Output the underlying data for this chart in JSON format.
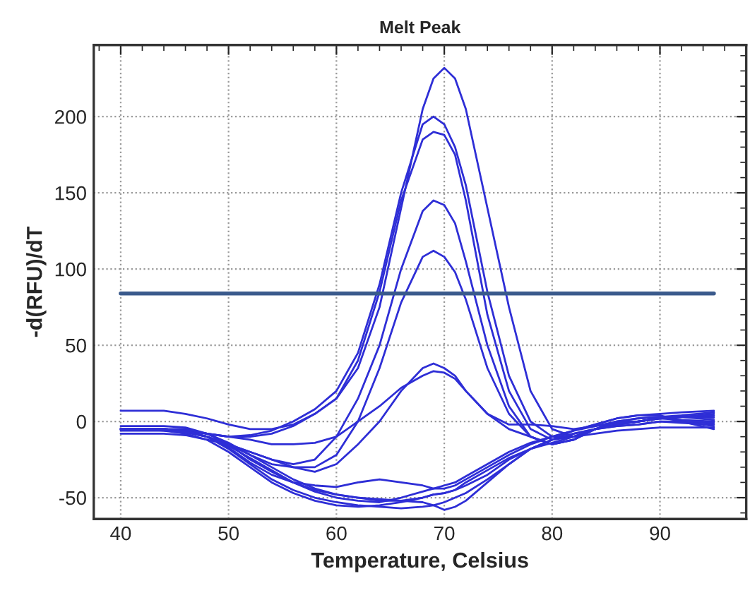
{
  "chart_data": {
    "type": "line",
    "title": "Melt Peak",
    "xlabel": "Temperature, Celsius",
    "ylabel": "-d(RFU)/dT",
    "x": [
      40,
      42,
      44,
      46,
      48,
      50,
      52,
      54,
      56,
      58,
      60,
      62,
      64,
      66,
      68,
      69,
      70,
      71,
      72,
      74,
      76,
      78,
      80,
      82,
      84,
      86,
      88,
      90,
      92,
      95
    ],
    "xlim": [
      37.5,
      98
    ],
    "ylim": [
      -64,
      247
    ],
    "xticks": [
      40,
      50,
      60,
      70,
      80,
      90
    ],
    "yticks": [
      -50,
      0,
      50,
      100,
      150,
      200
    ],
    "grid": true,
    "line_style": "solid",
    "marker": "none",
    "ref_lines": [
      {
        "axis": "y",
        "value": 84,
        "color": "#3a5a8c"
      }
    ],
    "series": [
      {
        "color": "#2e2ed6",
        "values": [
          -5,
          -5,
          -5,
          -6,
          -8,
          -10,
          -10,
          -8,
          -3,
          5,
          15,
          35,
          75,
          140,
          205,
          225,
          232,
          225,
          205,
          140,
          75,
          20,
          -5,
          -10,
          -5,
          0,
          0,
          2,
          3,
          5
        ]
      },
      {
        "color": "#2e2ed6",
        "values": [
          -5,
          -5,
          -5,
          -6,
          -8,
          -10,
          -9,
          -6,
          0,
          8,
          20,
          45,
          90,
          150,
          195,
          200,
          195,
          180,
          155,
          85,
          30,
          0,
          -10,
          -10,
          -5,
          -2,
          0,
          2,
          3,
          3
        ]
      },
      {
        "color": "#2e2ed6",
        "values": [
          7,
          7,
          7,
          5,
          2,
          -2,
          -5,
          -5,
          -2,
          5,
          15,
          40,
          85,
          145,
          185,
          190,
          188,
          175,
          145,
          70,
          20,
          -5,
          -12,
          -10,
          -5,
          0,
          2,
          3,
          4,
          6
        ]
      },
      {
        "color": "#2e2ed6",
        "values": [
          -5,
          -5,
          -5,
          -7,
          -10,
          -15,
          -20,
          -25,
          -28,
          -25,
          -10,
          15,
          50,
          100,
          138,
          145,
          142,
          130,
          105,
          50,
          10,
          -10,
          -15,
          -12,
          -5,
          -2,
          0,
          2,
          3,
          1
        ]
      },
      {
        "color": "#2e2ed6",
        "values": [
          -5,
          -5,
          -5,
          -7,
          -10,
          -15,
          -22,
          -28,
          -30,
          -30,
          -22,
          0,
          35,
          78,
          108,
          112,
          108,
          98,
          80,
          35,
          5,
          -10,
          -15,
          -12,
          -5,
          -2,
          0,
          2,
          3,
          2.5
        ]
      },
      {
        "color": "#2e2ed6",
        "values": [
          -5,
          -5,
          -6,
          -8,
          -12,
          -15,
          -20,
          -25,
          -30,
          -33,
          -28,
          -15,
          0,
          20,
          35,
          38,
          35,
          30,
          20,
          5,
          -5,
          -10,
          -15,
          -12,
          -5,
          -2,
          0,
          2,
          1,
          0
        ]
      },
      {
        "color": "#2e2ed6",
        "values": [
          -5,
          -5,
          -5,
          -6,
          -8,
          -10,
          -12,
          -15,
          -15,
          -14,
          -10,
          0,
          10,
          22,
          30,
          33,
          32,
          28,
          20,
          5,
          -2,
          -2,
          -3,
          -5,
          -3,
          -1,
          0,
          2,
          3,
          4
        ]
      },
      {
        "color": "#2e2ed6",
        "values": [
          -5,
          -5,
          -5,
          -6,
          -10,
          -18,
          -28,
          -38,
          -45,
          -50,
          -53,
          -55,
          -56,
          -57,
          -56,
          -55,
          -53,
          -50,
          -47,
          -38,
          -28,
          -18,
          -12,
          -8,
          -5,
          -3,
          -2,
          0,
          0,
          -1
        ]
      },
      {
        "color": "#2e2ed6",
        "values": [
          -3,
          -3,
          -3,
          -4,
          -8,
          -15,
          -25,
          -33,
          -40,
          -45,
          -48,
          -50,
          -52,
          -52,
          -50,
          -48,
          -47,
          -45,
          -42,
          -35,
          -25,
          -18,
          -12,
          -8,
          -5,
          -3,
          -2,
          0,
          -1,
          -2
        ]
      },
      {
        "color": "#2e2ed6",
        "values": [
          -8,
          -8,
          -8,
          -9,
          -12,
          -20,
          -30,
          -40,
          -47,
          -52,
          -55,
          -56,
          -55,
          -53,
          -50,
          -48,
          -47,
          -45,
          -40,
          -32,
          -24,
          -18,
          -14,
          -10,
          -8,
          -6,
          -5,
          -4,
          -4,
          -4
        ]
      },
      {
        "color": "#2e2ed6",
        "values": [
          -5,
          -5,
          -5,
          -6,
          -10,
          -17,
          -27,
          -35,
          -40,
          -42,
          -43,
          -40,
          -38,
          -40,
          -42,
          -44,
          -44,
          -42,
          -38,
          -30,
          -22,
          -15,
          -10,
          -6,
          -2,
          2,
          4,
          4,
          0,
          -3
        ]
      },
      {
        "color": "#2e2ed6",
        "values": [
          -5,
          -5,
          -5,
          -5,
          -8,
          -14,
          -22,
          -30,
          -38,
          -44,
          -48,
          -50,
          -51,
          -52,
          -53,
          -55,
          -58,
          -56,
          -52,
          -40,
          -28,
          -18,
          -12,
          -6,
          -2,
          2,
          4,
          5,
          6,
          7
        ]
      },
      {
        "color": "#2e2ed6",
        "values": [
          -6,
          -6,
          -6,
          -7,
          -10,
          -16,
          -24,
          -32,
          -40,
          -46,
          -50,
          -52,
          -53,
          -50,
          -46,
          -44,
          -42,
          -40,
          -36,
          -28,
          -20,
          -14,
          -10,
          -6,
          -3,
          0,
          2,
          3,
          0,
          -5
        ]
      }
    ]
  }
}
